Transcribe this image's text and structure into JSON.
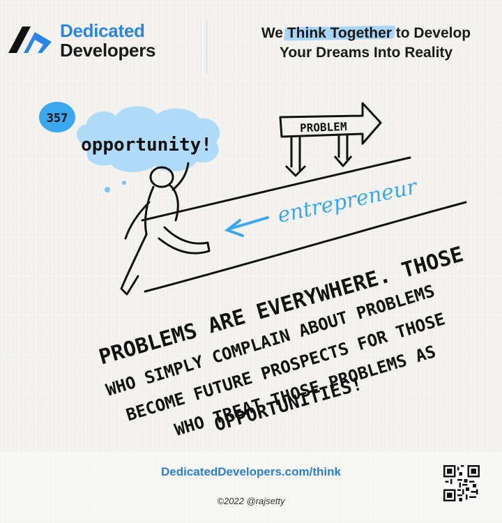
{
  "brand": {
    "name_line1": "Dedicated",
    "name_line2": "Developers",
    "logo_icon": "dd-chevron-logo-icon",
    "colors": {
      "blue": "#2a86e6",
      "dark": "#1a1a1a",
      "highlight": "#a9d6f7"
    }
  },
  "tagline": {
    "prefix": "We ",
    "highlight": "Think Together",
    "suffix": " to Develop",
    "line2": "Your Dreams Into Reality"
  },
  "sketch": {
    "number": "357",
    "thought": "opportunity!",
    "sign": "PROBLEM",
    "label": "entrepreneur",
    "quote_lines": [
      "PROBLEMS ARE EVERYWHERE. THOSE",
      "WHO SIMPLY COMPLAIN ABOUT PROBLEMS",
      "BECOME FUTURE PROSPECTS FOR THOSE",
      "WHO TREAT THOSE PROBLEMS AS",
      "OPPORTUNITIES!"
    ],
    "colors": {
      "ink": "#111111",
      "cloud": "#a9d8f8",
      "accent": "#3aa7f0"
    }
  },
  "footer": {
    "url": "DedicatedDevelopers.com/think",
    "copyright": "©2022 @rajsetty",
    "qr_icon": "qr-code-icon"
  }
}
